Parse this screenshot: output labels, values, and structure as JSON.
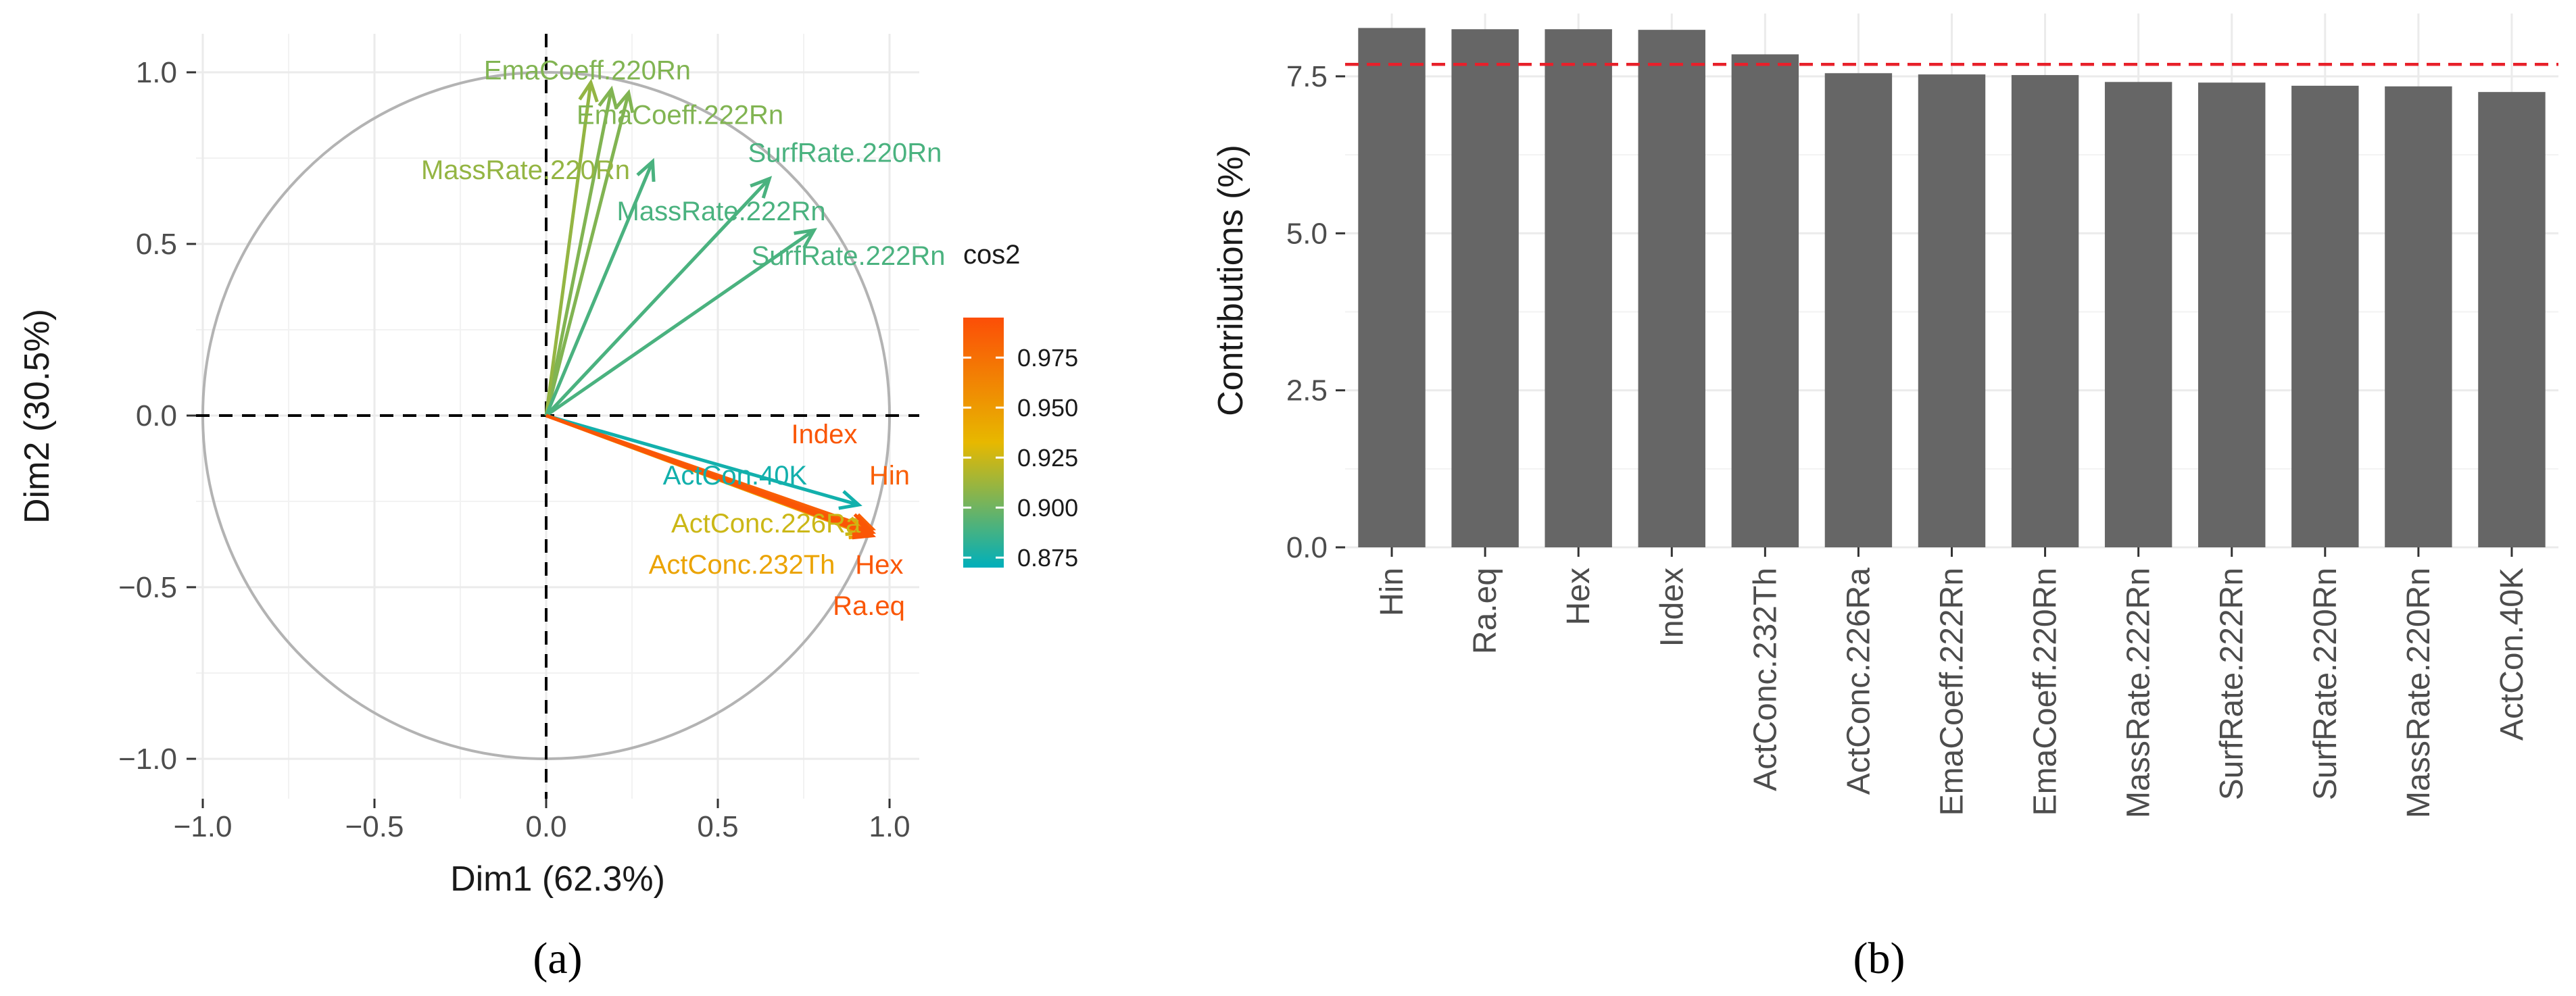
{
  "captions": {
    "a": "(a)",
    "b": "(b)"
  },
  "chart_data": [
    {
      "type": "scatter",
      "title": "",
      "xlabel": "Dim1 (62.3%)",
      "ylabel": "Dim2 (30.5%)",
      "xlim": [
        -1.1,
        1.1
      ],
      "ylim": [
        -1.1,
        1.1
      ],
      "xticks": [
        -1.0,
        -0.5,
        0.0,
        0.5,
        1.0
      ],
      "yticks": [
        -1.0,
        -0.5,
        0.0,
        0.5,
        1.0
      ],
      "xtick_labels": [
        "−1.0",
        "−0.5",
        "0.0",
        "0.5",
        "1.0"
      ],
      "ytick_labels": [
        "−1.0",
        "−0.5",
        "0.0",
        "0.5",
        "1.0"
      ],
      "grid": true,
      "legend": {
        "title": "cos2",
        "placement": "right",
        "range": [
          0.87,
          0.995
        ],
        "breaks": [
          0.975,
          0.95,
          0.925,
          0.9,
          0.875
        ],
        "break_labels": [
          "0.975",
          "0.950",
          "0.925",
          "0.900",
          "0.875"
        ],
        "colors": [
          "#00AFBB",
          "#E7B800",
          "#FC4E07"
        ]
      },
      "vectors": [
        {
          "name": "EmaCoeff.220Rn",
          "x": 0.19,
          "y": 0.95,
          "cos2": 0.905,
          "label_x": 0.12,
          "label_y": 1.0
        },
        {
          "name": "EmaCoeff.222Rn",
          "x": 0.24,
          "y": 0.94,
          "cos2": 0.905,
          "label_x": 0.39,
          "label_y": 0.87
        },
        {
          "name": "MassRate.220Rn",
          "x": 0.13,
          "y": 0.97,
          "cos2": 0.91,
          "label_x": -0.06,
          "label_y": 0.71
        },
        {
          "name": "MassRate.222Rn",
          "x": 0.65,
          "y": 0.69,
          "cos2": 0.89,
          "label_x": 0.51,
          "label_y": 0.59
        },
        {
          "name": "SurfRate.220Rn",
          "x": 0.31,
          "y": 0.74,
          "cos2": 0.89,
          "label_x": 0.87,
          "label_y": 0.76
        },
        {
          "name": "SurfRate.222Rn",
          "x": 0.78,
          "y": 0.54,
          "cos2": 0.89,
          "label_x": 0.88,
          "label_y": 0.46
        },
        {
          "name": "Index",
          "x": 0.94,
          "y": -0.33,
          "cos2": 0.99,
          "label_x": 0.81,
          "label_y": -0.06
        },
        {
          "name": "Hin",
          "x": 0.95,
          "y": -0.33,
          "cos2": 0.985,
          "label_x": 1.0,
          "label_y": -0.18
        },
        {
          "name": "ActCon.40K",
          "x": 0.91,
          "y": -0.26,
          "cos2": 0.875,
          "label_x": 0.55,
          "label_y": -0.18
        },
        {
          "name": "ActConc.226Ra",
          "x": 0.93,
          "y": -0.34,
          "cos2": 0.925,
          "label_x": 0.64,
          "label_y": -0.32
        },
        {
          "name": "ActConc.232Th",
          "x": 0.94,
          "y": -0.35,
          "cos2": 0.945,
          "label_x": 0.57,
          "label_y": -0.44
        },
        {
          "name": "Hex",
          "x": 0.95,
          "y": -0.34,
          "cos2": 0.99,
          "label_x": 0.97,
          "label_y": -0.44
        },
        {
          "name": "Ra.eq",
          "x": 0.95,
          "y": -0.35,
          "cos2": 0.99,
          "label_x": 0.94,
          "label_y": -0.56
        }
      ]
    },
    {
      "type": "bar",
      "title": "",
      "xlabel": "",
      "ylabel": "Contributions (%)",
      "ylim": [
        0,
        8.5
      ],
      "yticks": [
        0.0,
        2.5,
        5.0,
        7.5
      ],
      "ytick_labels": [
        "0.0",
        "2.5",
        "5.0",
        "7.5"
      ],
      "reference_line": 7.69,
      "bar_color": "#666666",
      "categories": [
        "Hin",
        "Ra.eq",
        "Hex",
        "Index",
        "ActConc.232Th",
        "ActConc.226Ra",
        "EmaCoeff.222Rn",
        "EmaCoeff.220Rn",
        "MassRate.222Rn",
        "SurfRate.222Rn",
        "SurfRate.220Rn",
        "MassRate.220Rn",
        "ActCon.40K"
      ],
      "values": [
        8.27,
        8.25,
        8.25,
        8.24,
        7.85,
        7.55,
        7.53,
        7.52,
        7.41,
        7.4,
        7.35,
        7.34,
        7.25
      ]
    }
  ]
}
